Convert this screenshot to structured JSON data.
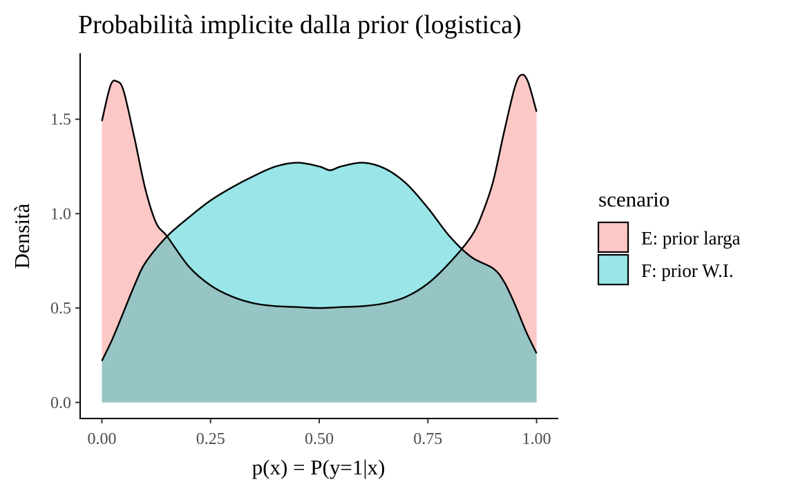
{
  "chart_data": {
    "type": "area",
    "title": "Probabilità implicite dalla prior (logistica)",
    "xlabel": "p(x) = P(y=1|x)",
    "ylabel": "Densità",
    "xlim": [
      -0.05,
      1.05
    ],
    "ylim": [
      -0.085,
      1.85
    ],
    "x_ticks": [
      0.0,
      0.25,
      0.5,
      0.75,
      1.0
    ],
    "x_tick_labels": [
      "0.00",
      "0.25",
      "0.50",
      "0.75",
      "1.00"
    ],
    "y_ticks": [
      0.0,
      0.5,
      1.0,
      1.5
    ],
    "y_tick_labels": [
      "0.0",
      "0.5",
      "1.0",
      "1.5"
    ],
    "grid": false,
    "legend": {
      "title": "scenario",
      "placement": "right"
    },
    "series": [
      {
        "name": "E: prior larga",
        "color": "#F8766D",
        "x": [
          0.0,
          0.02,
          0.035,
          0.05,
          0.075,
          0.1,
          0.125,
          0.15,
          0.2,
          0.25,
          0.3,
          0.35,
          0.4,
          0.45,
          0.5,
          0.55,
          0.6,
          0.65,
          0.7,
          0.75,
          0.8,
          0.85,
          0.875,
          0.9,
          0.925,
          0.95,
          0.965,
          0.98,
          1.0
        ],
        "values": [
          1.49,
          1.68,
          1.7,
          1.65,
          1.4,
          1.13,
          0.95,
          0.88,
          0.72,
          0.62,
          0.56,
          0.525,
          0.51,
          0.505,
          0.5,
          0.505,
          0.51,
          0.525,
          0.56,
          0.63,
          0.74,
          0.88,
          1.0,
          1.17,
          1.43,
          1.67,
          1.735,
          1.7,
          1.54
        ]
      },
      {
        "name": "F: prior W.I.",
        "color": "#00BFC4",
        "x": [
          0.0,
          0.025,
          0.05,
          0.075,
          0.1,
          0.15,
          0.2,
          0.25,
          0.3,
          0.35,
          0.4,
          0.45,
          0.5,
          0.525,
          0.55,
          0.6,
          0.65,
          0.7,
          0.75,
          0.8,
          0.85,
          0.9,
          0.925,
          0.95,
          0.975,
          1.0
        ],
        "values": [
          0.22,
          0.34,
          0.48,
          0.62,
          0.74,
          0.88,
          0.98,
          1.07,
          1.14,
          1.2,
          1.25,
          1.27,
          1.25,
          1.23,
          1.25,
          1.27,
          1.24,
          1.16,
          1.03,
          0.88,
          0.77,
          0.71,
          0.64,
          0.52,
          0.38,
          0.26
        ]
      }
    ]
  }
}
